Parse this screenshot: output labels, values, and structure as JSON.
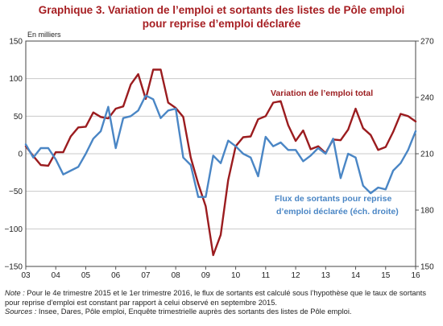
{
  "chart_data": {
    "type": "line",
    "title": "Graphique 3. Variation de l’emploi et sortants des listes de Pôle emploi",
    "subtitle": "pour reprise d’emploi déclarée",
    "left_axis_unit": "En milliers",
    "ylim_left": [
      -150,
      150
    ],
    "yticks_left": [
      "−150",
      "−100",
      "−50",
      "0",
      "50",
      "100",
      "150"
    ],
    "ylim_right": [
      150,
      270
    ],
    "yticks_right": [
      "150",
      "180",
      "210",
      "240",
      "270"
    ],
    "x_range": [
      2003.0,
      2016.0
    ],
    "xtick_labels": [
      "03",
      "04",
      "05",
      "06",
      "07",
      "08",
      "09",
      "10",
      "11",
      "12",
      "13",
      "14",
      "15",
      "16"
    ],
    "grid": "horizontal",
    "series": [
      {
        "name": "Variation  de l’emploi total",
        "axis": "left",
        "color": "#9b1c1f",
        "x": [
          2003.0,
          2003.25,
          2003.5,
          2003.75,
          2004.0,
          2004.25,
          2004.5,
          2004.75,
          2005.0,
          2005.25,
          2005.5,
          2005.75,
          2006.0,
          2006.25,
          2006.5,
          2006.75,
          2007.0,
          2007.25,
          2007.5,
          2007.75,
          2008.0,
          2008.25,
          2008.5,
          2008.75,
          2009.0,
          2009.25,
          2009.5,
          2009.75,
          2010.0,
          2010.25,
          2010.5,
          2010.75,
          2011.0,
          2011.25,
          2011.5,
          2011.75,
          2012.0,
          2012.25,
          2012.5,
          2012.75,
          2013.0,
          2013.25,
          2013.5,
          2013.75,
          2014.0,
          2014.25,
          2014.5,
          2014.75,
          2015.0,
          2015.25,
          2015.5,
          2015.75,
          2016.0
        ],
        "values": [
          10,
          -3,
          -15,
          -16,
          2,
          2,
          23,
          35,
          36,
          55,
          49,
          47,
          60,
          63,
          92,
          106,
          73,
          112,
          112,
          68,
          61,
          49,
          -5,
          -40,
          -70,
          -135,
          -108,
          -35,
          10,
          22,
          23,
          46,
          50,
          68,
          70,
          38,
          17,
          31,
          6,
          10,
          1,
          19,
          18,
          32,
          60,
          34,
          25,
          5,
          9,
          29,
          53,
          50,
          43
        ]
      },
      {
        "name": "Flux de sortants  pour reprise d’emploi déclarée (éch. droite)",
        "axis": "right",
        "color": "#4a86c5",
        "x": [
          2003.0,
          2003.25,
          2003.5,
          2003.75,
          2004.0,
          2004.25,
          2004.5,
          2004.75,
          2005.0,
          2005.25,
          2005.5,
          2005.75,
          2006.0,
          2006.25,
          2006.5,
          2006.75,
          2007.0,
          2007.25,
          2007.5,
          2007.75,
          2008.0,
          2008.25,
          2008.5,
          2008.75,
          2009.0,
          2009.25,
          2009.5,
          2009.75,
          2010.0,
          2010.25,
          2010.5,
          2010.75,
          2011.0,
          2011.25,
          2011.5,
          2011.75,
          2012.0,
          2012.25,
          2012.5,
          2012.75,
          2013.0,
          2013.25,
          2013.5,
          2013.75,
          2014.0,
          2014.25,
          2014.5,
          2014.75,
          2015.0,
          2015.25,
          2015.5,
          2015.75,
          2016.0
        ],
        "values": [
          215,
          208,
          213,
          213,
          207,
          199,
          201,
          203,
          210,
          218,
          222,
          235,
          213,
          229,
          230,
          233,
          241,
          239,
          229,
          233,
          234,
          208,
          204,
          187,
          187,
          209,
          205,
          217,
          214,
          210,
          208,
          198,
          219,
          214,
          216,
          212,
          212,
          206,
          209,
          213,
          210,
          218,
          197,
          210,
          208,
          193,
          189,
          192,
          191,
          201,
          205,
          212,
          222
        ]
      }
    ],
    "annotations": [
      {
        "text": "Variation  de l’emploi total",
        "color": "#9b1c1f"
      },
      {
        "text": "Flux de sortants  pour reprise",
        "color": "#4a86c5"
      },
      {
        "text": "d’emploi déclarée (éch. droite)",
        "color": "#4a86c5"
      }
    ]
  },
  "notes": {
    "note_label": "Note :",
    "note_line1": " Pour le 4e trimestre 2015 et le 1er trimestre 2016, le flux de sortants est calculé sous l’hypothèse que le taux de sortants",
    "note_line2": "pour reprise d’emploi est constant par rapport à celui observé en septembre 2015.",
    "sources_label": "Sources :",
    "sources_text": " Insee, Dares, Pôle emploi, Enquête trimestrielle auprès des sortants des listes de Pôle emploi."
  }
}
